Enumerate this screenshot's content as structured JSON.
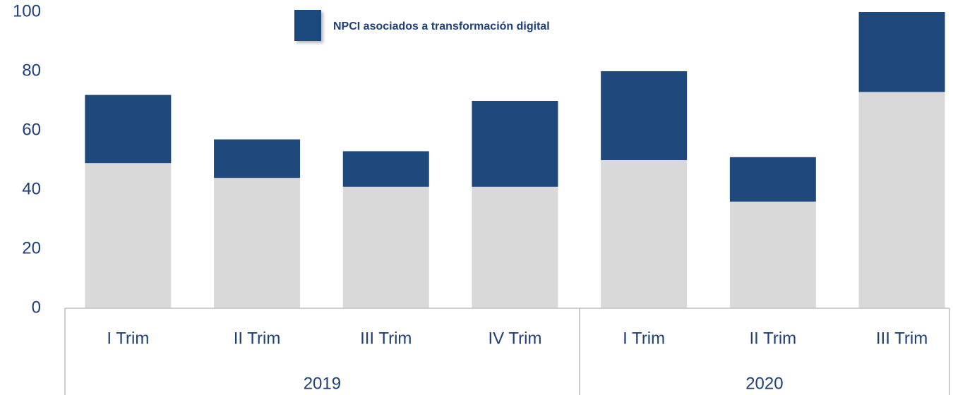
{
  "chart_data": {
    "type": "stacked_bar",
    "groups": [
      {
        "label": "2019",
        "categories": [
          "I Trim",
          "II Trim",
          "III Trim",
          "IV Trim"
        ]
      },
      {
        "label": "2020",
        "categories": [
          "I Trim",
          "II Trim",
          "III Trim"
        ]
      }
    ],
    "series": [
      {
        "color": "#d9d9d9",
        "values": [
          49,
          44,
          41,
          41,
          50,
          36,
          73
        ]
      },
      {
        "name": "NPCI asociados a transformación digital",
        "color": "#1f497d",
        "values": [
          23,
          13,
          12,
          29,
          30,
          15,
          27
        ]
      }
    ],
    "ylim": [
      0,
      100
    ],
    "yticks": [
      0,
      20,
      40,
      60,
      80,
      100
    ],
    "grid": false,
    "legend": "top"
  }
}
